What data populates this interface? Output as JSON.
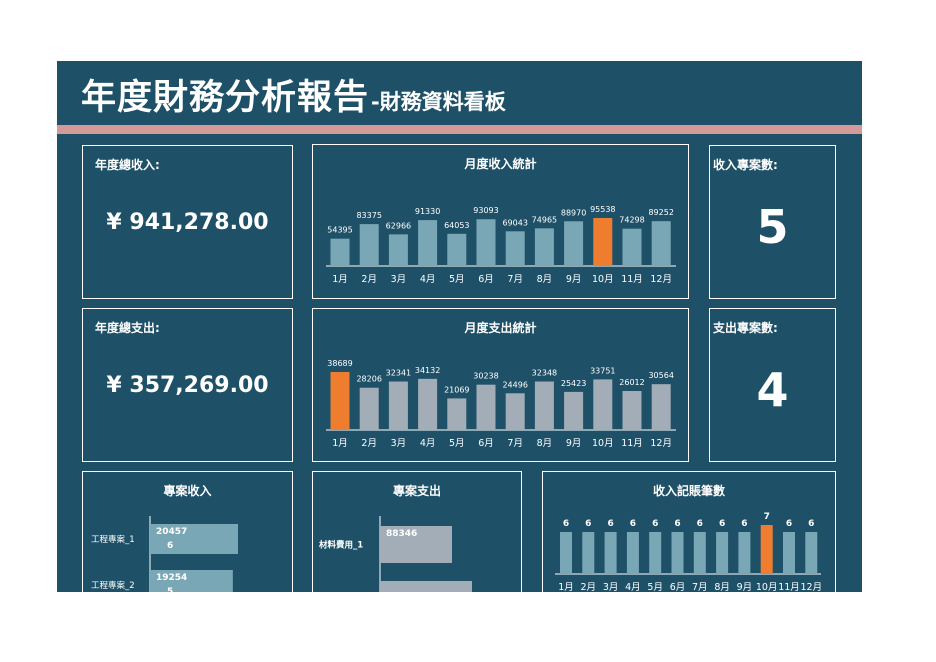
{
  "header": {
    "title": "年度財務分析報告",
    "subtitle": "-財務資料看板"
  },
  "colors": {
    "background": "#1e5068",
    "accent_bar": "#d49a9a",
    "income_bar": "#7aa7b5",
    "expense_bar": "#a3adb7",
    "highlight": "#ee7d2f"
  },
  "kpis": {
    "income_label": "年度總收入:",
    "income_value": "¥ 941,278.00",
    "expense_label": "年度總支出:",
    "expense_value": "¥ 357,269.00",
    "income_projects_label": "收入專案數:",
    "income_projects_value": "5",
    "expense_projects_label": "支出專案數:",
    "expense_projects_value": "4"
  },
  "chart_data": [
    {
      "id": "monthly_income",
      "type": "bar",
      "title": "月度收入統計",
      "categories": [
        "1月",
        "2月",
        "3月",
        "4月",
        "5月",
        "6月",
        "7月",
        "8月",
        "9月",
        "10月",
        "11月",
        "12月"
      ],
      "values": [
        54395,
        83375,
        62966,
        91330,
        64053,
        93093,
        69043,
        74965,
        88970,
        95538,
        74298,
        89252
      ],
      "highlight_index": 9
    },
    {
      "id": "monthly_expense",
      "type": "bar",
      "title": "月度支出統計",
      "categories": [
        "1月",
        "2月",
        "3月",
        "4月",
        "5月",
        "6月",
        "7月",
        "8月",
        "9月",
        "10月",
        "11月",
        "12月"
      ],
      "values": [
        38689,
        28206,
        32341,
        34132,
        21069,
        30238,
        24496,
        32348,
        25423,
        33751,
        26012,
        30564
      ],
      "highlight_index": 0
    },
    {
      "id": "project_income",
      "type": "bar",
      "orientation": "horizontal",
      "title": "專案收入",
      "categories": [
        "工程專案_1",
        "工程專案_2"
      ],
      "values": [
        204576,
        192545
      ],
      "value_labels_visible": [
        "20457\n6",
        "19254\n5"
      ]
    },
    {
      "id": "project_expense",
      "type": "bar",
      "orientation": "horizontal",
      "title": "專案支出",
      "categories": [
        "材料費用_1",
        ""
      ],
      "values": [
        88346,
        null
      ],
      "value_labels_visible": [
        "88346",
        ""
      ]
    },
    {
      "id": "income_entries",
      "type": "bar",
      "title": "收入記賬筆數",
      "categories": [
        "1月",
        "2月",
        "3月",
        "4月",
        "5月",
        "6月",
        "7月",
        "8月",
        "9月",
        "10月",
        "11月",
        "12月"
      ],
      "values": [
        6,
        6,
        6,
        6,
        6,
        6,
        6,
        6,
        6,
        7,
        6,
        6
      ],
      "highlight_index": 9
    }
  ]
}
